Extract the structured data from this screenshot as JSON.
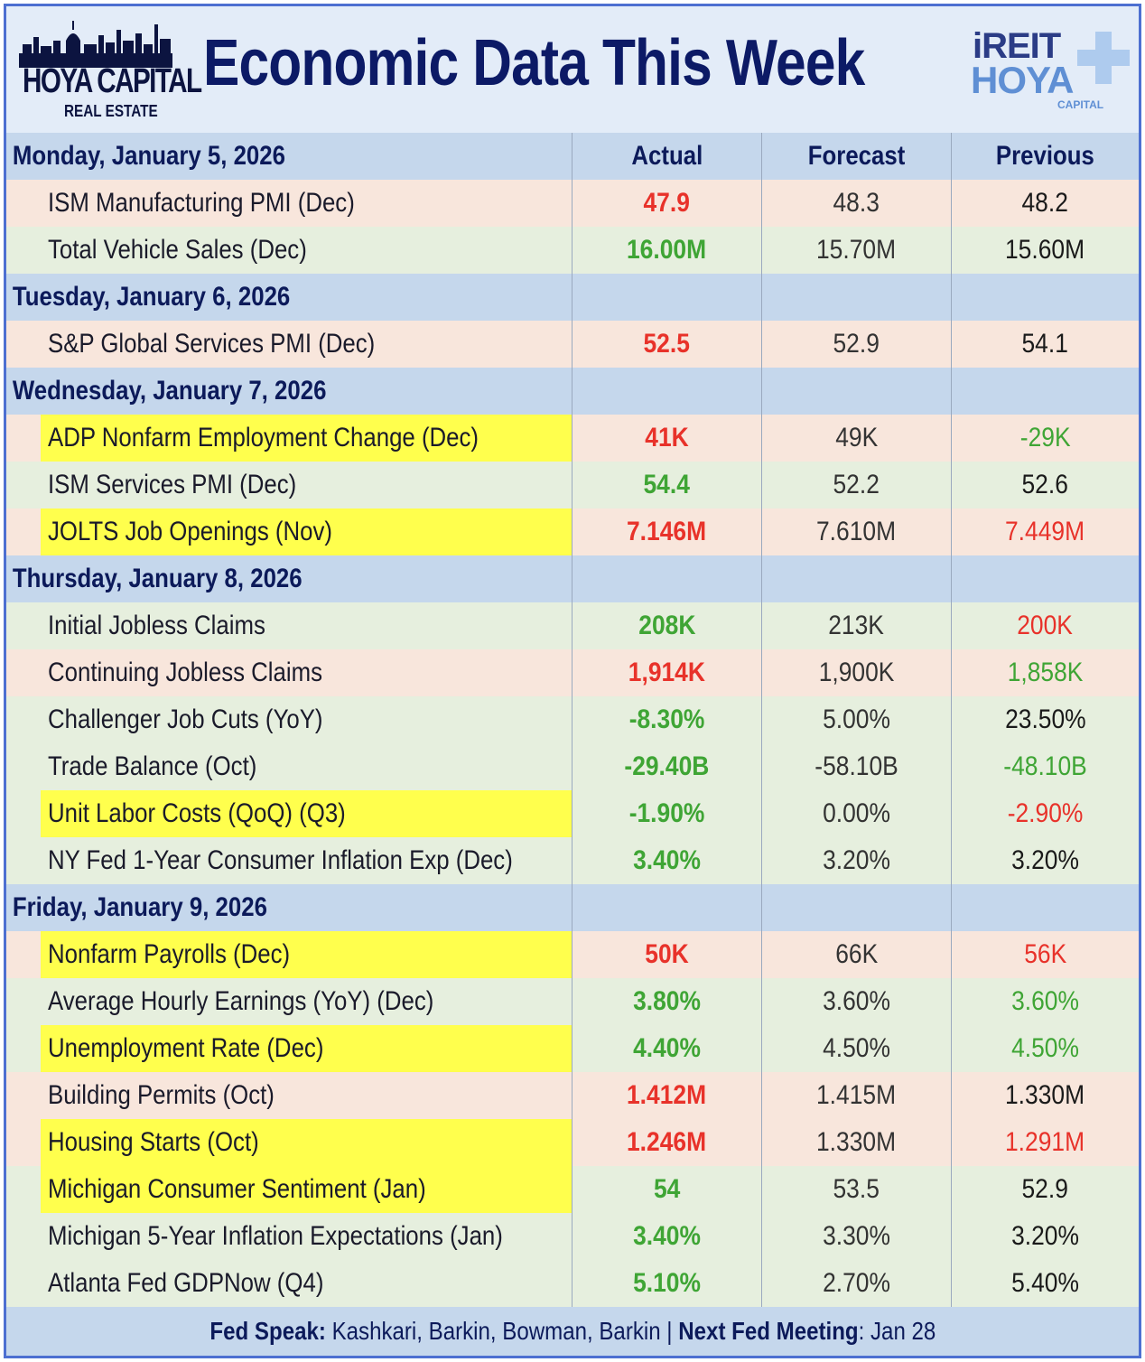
{
  "header": {
    "title": "Economic Data This Week",
    "logo_left_line1": "HOYA CAPITAL",
    "logo_left_line2": "REAL ESTATE",
    "logo_right_line1": "iREIT",
    "logo_right_line2": "HOYA",
    "logo_right_line3": "CAPITAL"
  },
  "columns": {
    "actual": "Actual",
    "forecast": "Forecast",
    "previous": "Previous"
  },
  "colors": {
    "red": "#e8322a",
    "green": "#3fa535",
    "highlight": "#ffff4d",
    "day_bg": "#c5d7ec",
    "navy": "#0c1a66",
    "border": "#4d6fd1"
  },
  "days": [
    {
      "label": "Monday, January 5, 2026",
      "rows": [
        {
          "name": "ISM Manufacturing PMI (Dec)",
          "actual": "47.9",
          "forecast": "48.3",
          "previous": "48.2",
          "actual_tone": "red",
          "prev_tone": "black",
          "highlight": false
        },
        {
          "name": "Total Vehicle Sales (Dec)",
          "actual": "16.00M",
          "forecast": "15.70M",
          "previous": "15.60M",
          "actual_tone": "green",
          "prev_tone": "black",
          "highlight": false
        }
      ]
    },
    {
      "label": "Tuesday, January 6, 2026",
      "rows": [
        {
          "name": "S&P Global Services PMI (Dec)",
          "actual": "52.5",
          "forecast": "52.9",
          "previous": "54.1",
          "actual_tone": "red",
          "prev_tone": "black",
          "highlight": false
        }
      ]
    },
    {
      "label": "Wednesday, January 7, 2026",
      "rows": [
        {
          "name": "ADP Nonfarm Employment Change (Dec)",
          "actual": "41K",
          "forecast": "49K",
          "previous": "-29K",
          "actual_tone": "red",
          "prev_tone": "green",
          "highlight": true
        },
        {
          "name": "ISM Services PMI (Dec)",
          "actual": "54.4",
          "forecast": "52.2",
          "previous": "52.6",
          "actual_tone": "green",
          "prev_tone": "black",
          "highlight": false
        },
        {
          "name": "JOLTS Job Openings (Nov)",
          "actual": "7.146M",
          "forecast": "7.610M",
          "previous": "7.449M",
          "actual_tone": "red",
          "prev_tone": "red",
          "highlight": true
        }
      ]
    },
    {
      "label": "Thursday, January 8, 2026",
      "rows": [
        {
          "name": "Initial Jobless Claims",
          "actual": "208K",
          "forecast": "213K",
          "previous": "200K",
          "actual_tone": "green",
          "prev_tone": "red",
          "highlight": false
        },
        {
          "name": "Continuing Jobless Claims",
          "actual": "1,914K",
          "forecast": "1,900K",
          "previous": "1,858K",
          "actual_tone": "red",
          "prev_tone": "green",
          "highlight": false
        },
        {
          "name": "Challenger Job Cuts (YoY)",
          "actual": "-8.30%",
          "forecast": "5.00%",
          "previous": "23.50%",
          "actual_tone": "green",
          "prev_tone": "black",
          "highlight": false
        },
        {
          "name": "Trade Balance (Oct)",
          "actual": "-29.40B",
          "forecast": "-58.10B",
          "previous": "-48.10B",
          "actual_tone": "green",
          "prev_tone": "green",
          "highlight": false
        },
        {
          "name": "Unit Labor Costs (QoQ) (Q3)",
          "actual": "-1.90%",
          "forecast": "0.00%",
          "previous": "-2.90%",
          "actual_tone": "green",
          "prev_tone": "red",
          "highlight": true
        },
        {
          "name": "NY Fed 1-Year Consumer Inflation Exp (Dec)",
          "actual": "3.40%",
          "forecast": "3.20%",
          "previous": "3.20%",
          "actual_tone": "green",
          "prev_tone": "black",
          "highlight": false
        }
      ]
    },
    {
      "label": "Friday, January 9, 2026",
      "rows": [
        {
          "name": "Nonfarm Payrolls (Dec)",
          "actual": "50K",
          "forecast": "66K",
          "previous": "56K",
          "actual_tone": "red",
          "prev_tone": "red",
          "highlight": true
        },
        {
          "name": "Average Hourly Earnings (YoY) (Dec)",
          "actual": "3.80%",
          "forecast": "3.60%",
          "previous": "3.60%",
          "actual_tone": "green",
          "prev_tone": "green",
          "highlight": false
        },
        {
          "name": "Unemployment Rate (Dec)",
          "actual": "4.40%",
          "forecast": "4.50%",
          "previous": "4.50%",
          "actual_tone": "green",
          "prev_tone": "green",
          "highlight": true
        },
        {
          "name": "Building Permits (Oct)",
          "actual": "1.412M",
          "forecast": "1.415M",
          "previous": "1.330M",
          "actual_tone": "red",
          "prev_tone": "black",
          "highlight": false
        },
        {
          "name": "Housing Starts (Oct)",
          "actual": "1.246M",
          "forecast": "1.330M",
          "previous": "1.291M",
          "actual_tone": "red",
          "prev_tone": "red",
          "highlight": true
        },
        {
          "name": "Michigan Consumer Sentiment (Jan)",
          "actual": "54",
          "forecast": "53.5",
          "previous": "52.9",
          "actual_tone": "green",
          "prev_tone": "black",
          "highlight": true
        },
        {
          "name": "Michigan 5-Year Inflation Expectations (Jan)",
          "actual": "3.40%",
          "forecast": "3.30%",
          "previous": "3.20%",
          "actual_tone": "green",
          "prev_tone": "black",
          "highlight": false
        },
        {
          "name": "Atlanta Fed GDPNow (Q4)",
          "actual": "5.10%",
          "forecast": "2.70%",
          "previous": "5.40%",
          "actual_tone": "green",
          "prev_tone": "black",
          "highlight": false
        }
      ]
    }
  ],
  "footer": {
    "fed_speak_label": "Fed Speak:",
    "fed_speak_value": " Kashkari, Barkin, Bowman, Barkin | ",
    "next_meeting_label": "Next Fed Meeting",
    "next_meeting_value": ": Jan 28"
  }
}
